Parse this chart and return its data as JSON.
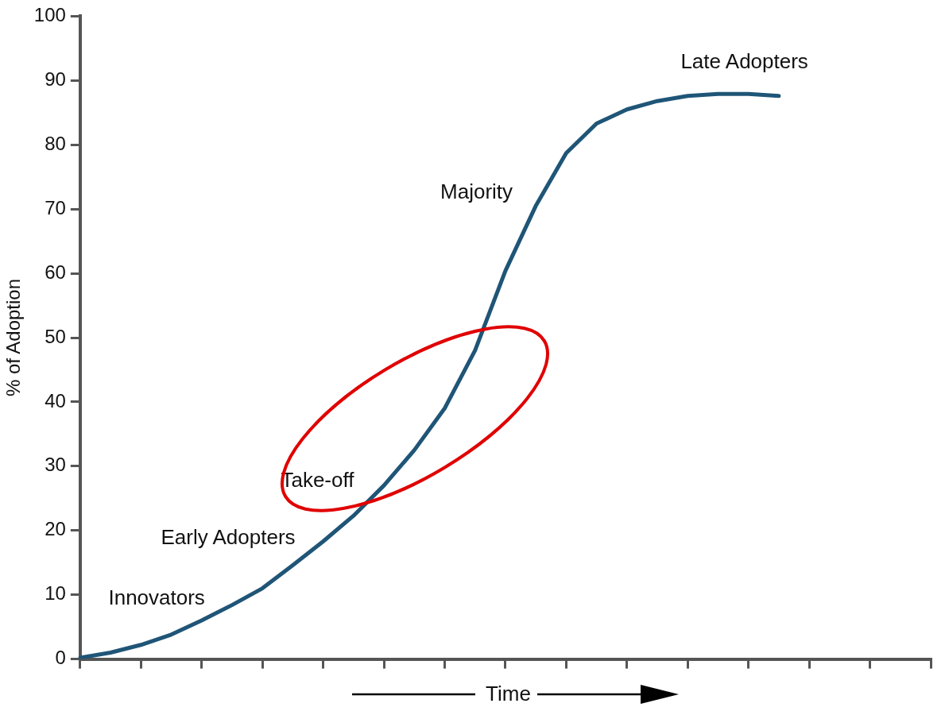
{
  "chart_data": {
    "type": "line",
    "xlabel": "Time",
    "ylabel": "% of Adoption",
    "categories": [
      null,
      null,
      null,
      null,
      null,
      null,
      null,
      null,
      null,
      null,
      null,
      null,
      null,
      null,
      null,
      null,
      null,
      null,
      null,
      null,
      null,
      null,
      null,
      null,
      null,
      null,
      null,
      null,
      null
    ],
    "series": [
      {
        "color": "#1f5577",
        "values": [
          0.2,
          1,
          2.2,
          3.8,
          6,
          8.4,
          11,
          14.6,
          18.3,
          22.3,
          27,
          32.5,
          39,
          48,
          60.4,
          70.5,
          78.7,
          83.3,
          85.5,
          86.8,
          87.6,
          87.9,
          87.9,
          87.6,
          null,
          null,
          null,
          null,
          null
        ]
      }
    ],
    "ylim": [
      0,
      100
    ],
    "yticks": [
      0,
      10,
      20,
      30,
      40,
      50,
      60,
      70,
      80,
      90,
      100
    ],
    "tick_labels": "y",
    "marker": "none",
    "line_style": "solid",
    "annotations": [
      "Innovators",
      "Early Adopters",
      "Take-off",
      "Majority",
      "Late Adopters"
    ]
  }
}
